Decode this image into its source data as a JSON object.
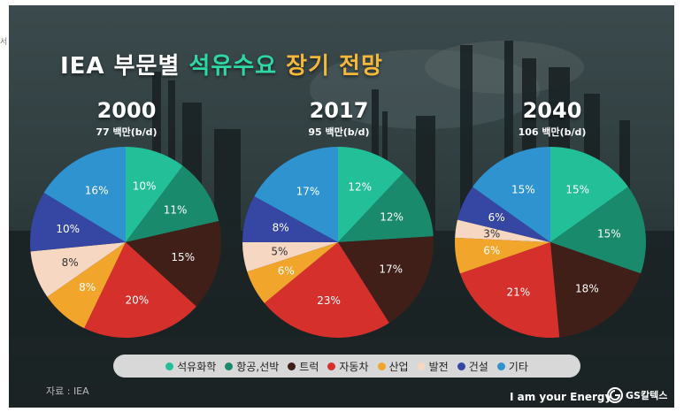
{
  "side_text": "서",
  "title": {
    "part1": "IEA 부문별 ",
    "part2": "석유수요",
    "part3": " 장기 전망"
  },
  "source": "자료 : IEA",
  "slogan": "I am your Energy",
  "logo_text": "GS칼텍스",
  "colors": {
    "petrochemical": "#22bf98",
    "aviation_shipping": "#1a8a6c",
    "truck": "#3f1f18",
    "car": "#d6302c",
    "industry": "#f1a52a",
    "power": "#f6d7c1",
    "building": "#3546a3",
    "other": "#2f93cf"
  },
  "chart_data": [
    {
      "type": "pie",
      "title": "2000",
      "subtitle": "77 백만(b/d)",
      "categories": [
        "석유화학",
        "항공,선박",
        "트럭",
        "자동차",
        "산업",
        "발전",
        "건설",
        "기타"
      ],
      "values": [
        10,
        11,
        15,
        20,
        8,
        8,
        10,
        16
      ],
      "labels": [
        "10%",
        "11%",
        "15%",
        "20%",
        "8%",
        "8%",
        "10%",
        "16%"
      ]
    },
    {
      "type": "pie",
      "title": "2017",
      "subtitle": "95 백만(b/d)",
      "categories": [
        "석유화학",
        "항공,선박",
        "트럭",
        "자동차",
        "산업",
        "발전",
        "건설",
        "기타"
      ],
      "values": [
        12,
        12,
        17,
        23,
        6,
        5,
        8,
        17
      ],
      "labels": [
        "12%",
        "12%",
        "17%",
        "23%",
        "6%",
        "5%",
        "8%",
        "17%"
      ]
    },
    {
      "type": "pie",
      "title": "2040",
      "subtitle": "106 백만(b/d)",
      "categories": [
        "석유화학",
        "항공,선박",
        "트럭",
        "자동차",
        "산업",
        "발전",
        "건설",
        "기타"
      ],
      "values": [
        15,
        15,
        18,
        21,
        6,
        3,
        6,
        15
      ],
      "labels": [
        "15%",
        "15%",
        "18%",
        "21%",
        "6%",
        "3%",
        "6%",
        "15%"
      ]
    }
  ],
  "legend": [
    {
      "label": "석유화학",
      "color": "#22bf98"
    },
    {
      "label": "항공,선박",
      "color": "#1a8a6c"
    },
    {
      "label": "트럭",
      "color": "#3f1f18"
    },
    {
      "label": "자동차",
      "color": "#d6302c"
    },
    {
      "label": "산업",
      "color": "#f1a52a"
    },
    {
      "label": "발전",
      "color": "#f6d7c1"
    },
    {
      "label": "건설",
      "color": "#3546a3"
    },
    {
      "label": "기타",
      "color": "#2f93cf"
    }
  ]
}
